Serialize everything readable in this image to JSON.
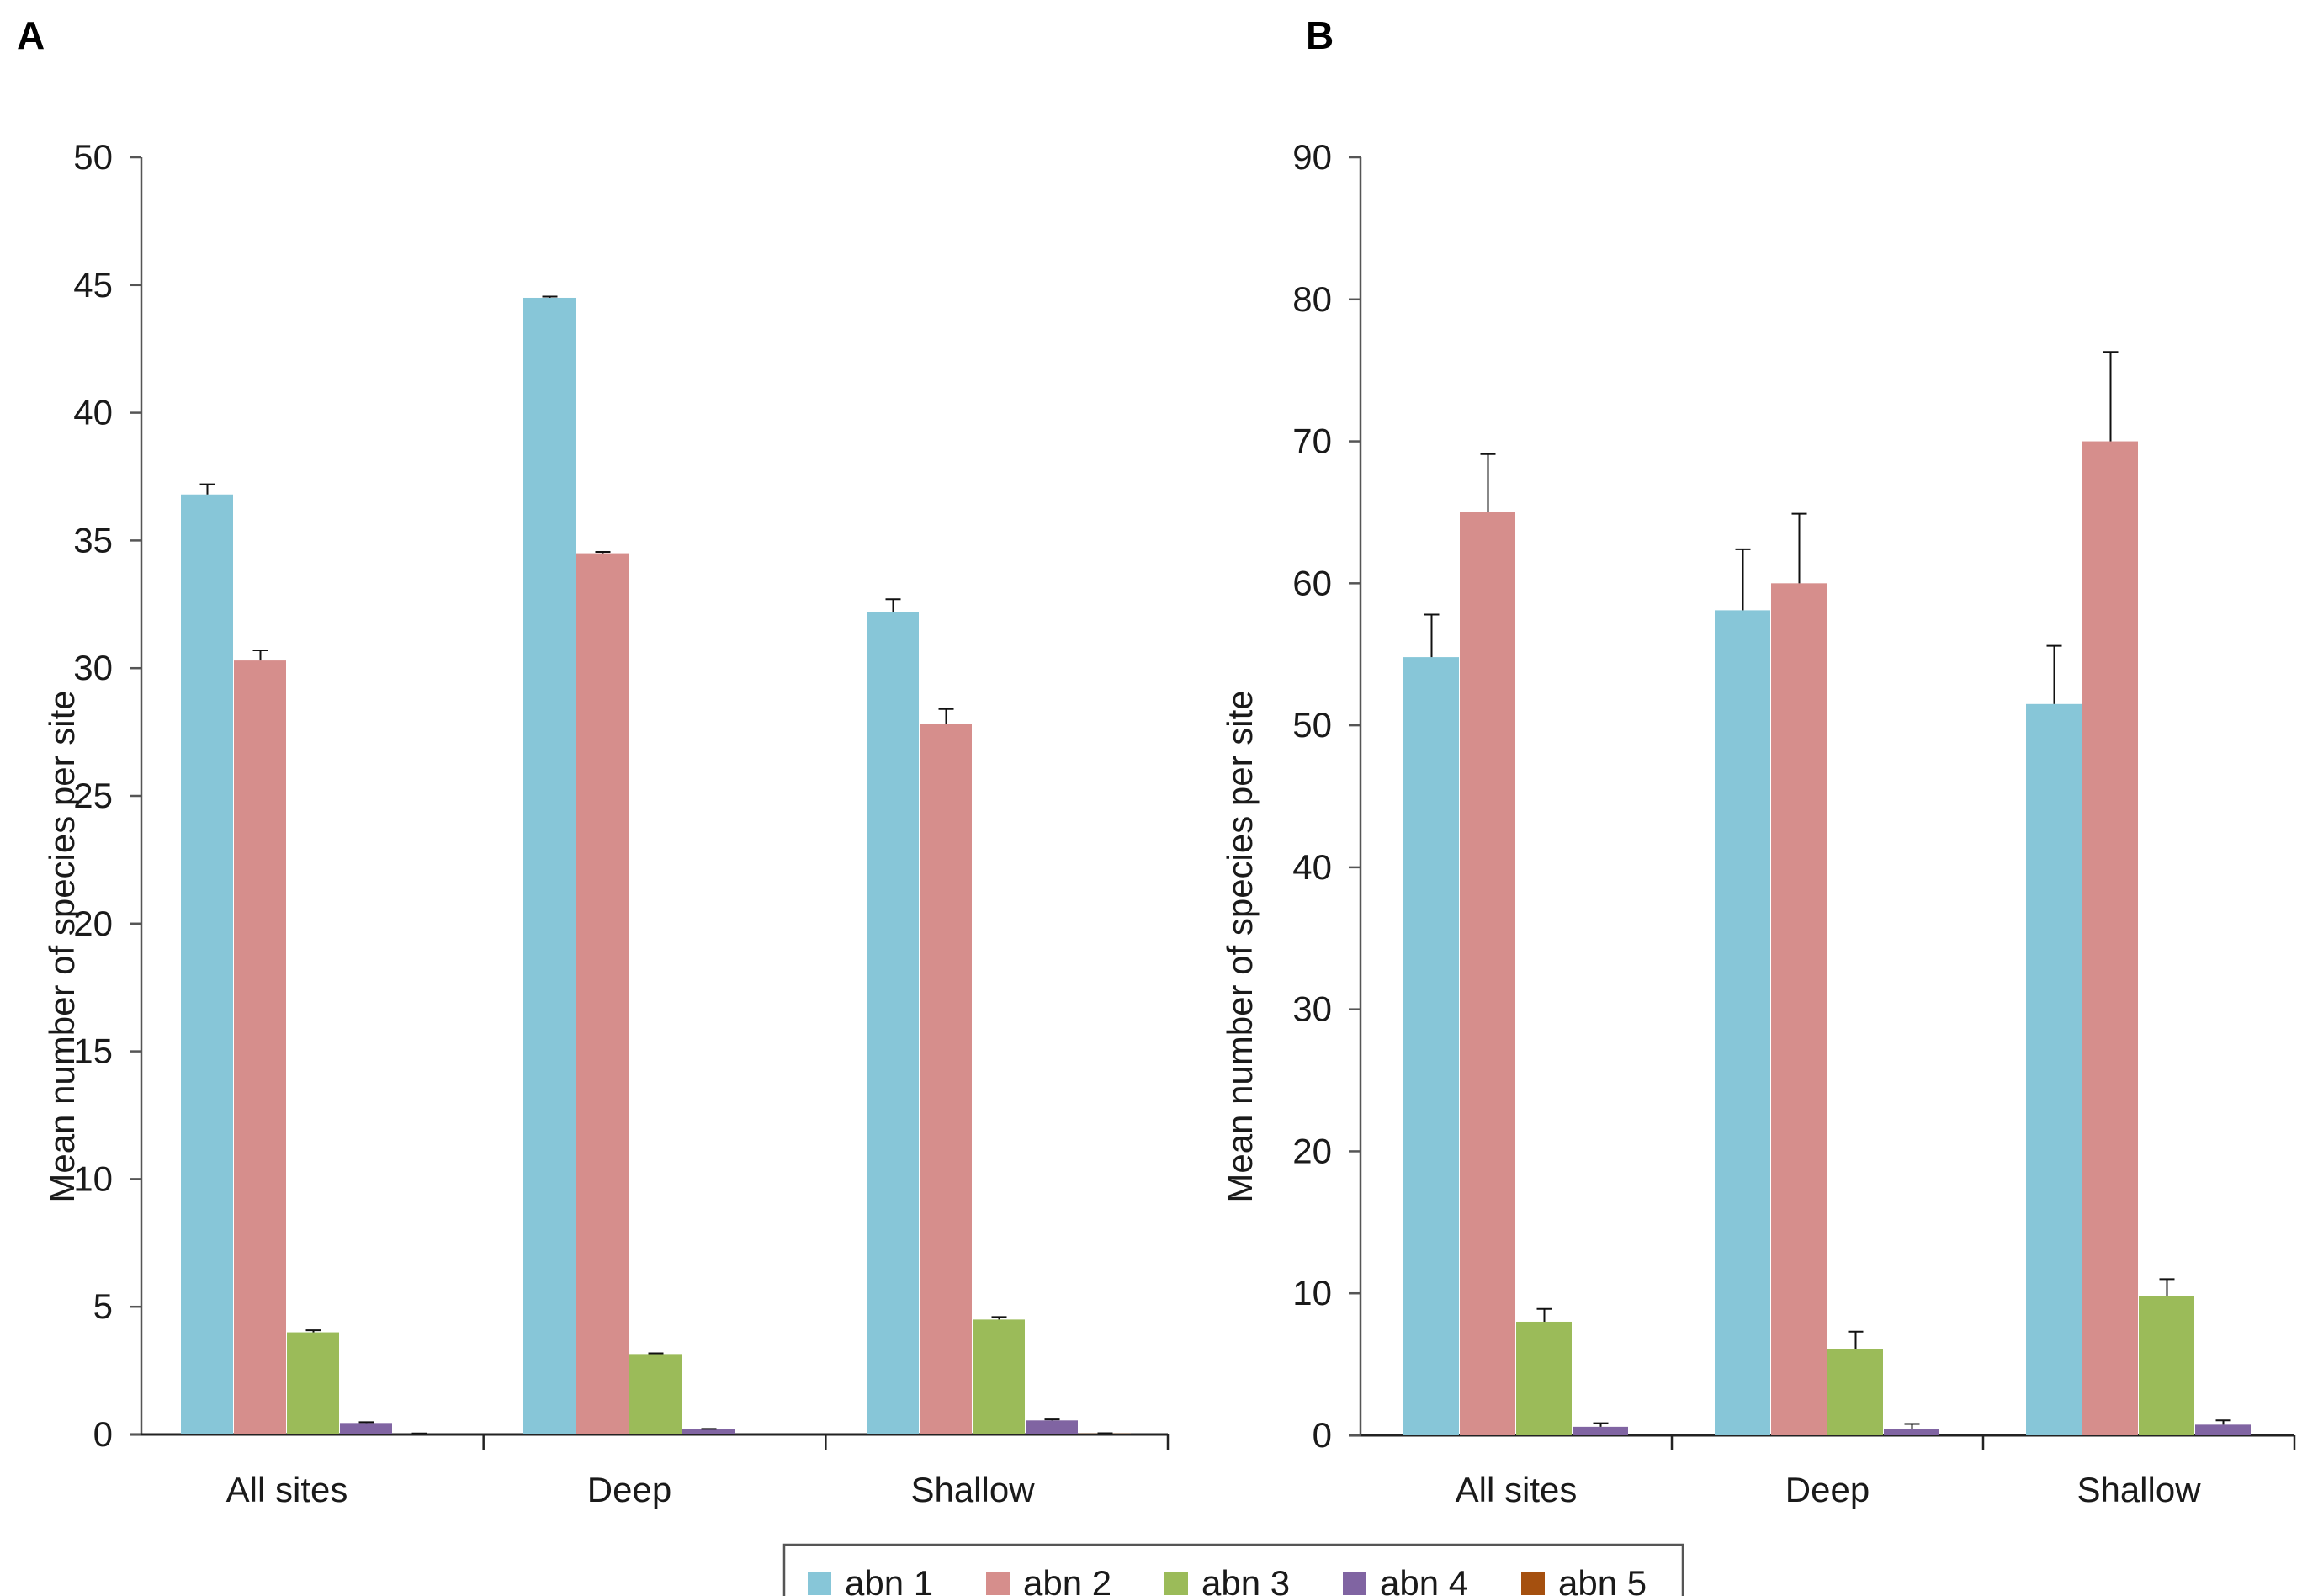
{
  "chart_data": [
    {
      "panel": "A",
      "type": "bar",
      "ylabel": "Mean number of species per site",
      "xlabel": "",
      "ylim": [
        0,
        50
      ],
      "yticks": [
        0,
        5,
        10,
        15,
        20,
        25,
        30,
        35,
        40,
        45,
        50
      ],
      "categories": [
        "All sites",
        "Deep",
        "Shallow"
      ],
      "series": [
        {
          "name": "abn 1",
          "color": "#87C6D8",
          "values": [
            36.8,
            44.5,
            32.2
          ],
          "errors": [
            0.4,
            0.05,
            0.5
          ]
        },
        {
          "name": "abn 2",
          "color": "#D68E8C",
          "values": [
            30.3,
            34.5,
            27.8
          ],
          "errors": [
            0.4,
            0.05,
            0.6
          ]
        },
        {
          "name": "abn 3",
          "color": "#9BBB59",
          "values": [
            4.0,
            3.15,
            4.5
          ],
          "errors": [
            0.08,
            0.03,
            0.1
          ]
        },
        {
          "name": "abn 4",
          "color": "#8064A2",
          "values": [
            0.45,
            0.2,
            0.55
          ],
          "errors": [
            0.03,
            0.02,
            0.04
          ]
        },
        {
          "name": "abn 5",
          "color": "#A5500F",
          "values": [
            0.03,
            0.0,
            0.04
          ],
          "errors": [
            0.01,
            0.0,
            0.01
          ]
        }
      ]
    },
    {
      "panel": "B",
      "type": "bar",
      "ylabel": "Mean number of species per site",
      "xlabel": "",
      "ylim": [
        0,
        90
      ],
      "yticks": [
        0,
        10,
        20,
        30,
        40,
        50,
        60,
        70,
        80,
        90
      ],
      "categories": [
        "All sites",
        "Deep",
        "Shallow"
      ],
      "series": [
        {
          "name": "abn 1",
          "color": "#87C6D8",
          "values": [
            54.8,
            58.1,
            51.5
          ],
          "errors": [
            3.0,
            4.3,
            4.1
          ]
        },
        {
          "name": "abn 2",
          "color": "#D68E8C",
          "values": [
            65.0,
            60.0,
            70.0
          ],
          "errors": [
            4.1,
            4.9,
            6.3
          ]
        },
        {
          "name": "abn 3",
          "color": "#9BBB59",
          "values": [
            8.0,
            6.1,
            9.8
          ],
          "errors": [
            0.9,
            1.2,
            1.2
          ]
        },
        {
          "name": "abn 4",
          "color": "#8064A2",
          "values": [
            0.6,
            0.45,
            0.75
          ],
          "errors": [
            0.25,
            0.35,
            0.3
          ]
        },
        {
          "name": "abn 5",
          "color": "#A5500F",
          "values": [
            0.0,
            0.0,
            0.0
          ],
          "errors": [
            0.0,
            0.0,
            0.0
          ]
        }
      ]
    }
  ],
  "legend": {
    "entries": [
      {
        "label": "abn 1",
        "color": "#87C6D8"
      },
      {
        "label": "abn 2",
        "color": "#D68E8C"
      },
      {
        "label": "abn 3",
        "color": "#9BBB59"
      },
      {
        "label": "abn 4",
        "color": "#8064A2"
      },
      {
        "label": "abn 5",
        "color": "#A5500F"
      }
    ]
  }
}
